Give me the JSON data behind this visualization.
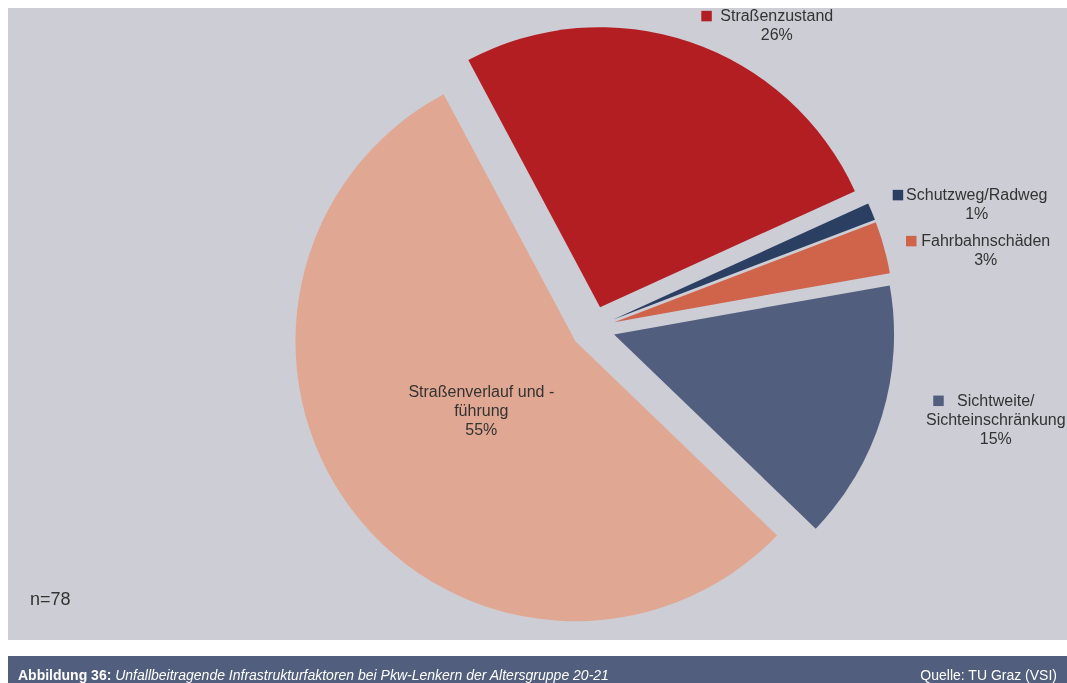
{
  "chart_data": {
    "type": "pie",
    "title": "Abbildung 36: Unfallbeitragende Infrastrukturfaktoren bei Pkw-Lenkern der Altersgruppe 20-21",
    "categories": [
      "Straßenzustand",
      "Schutzweg/Radweg",
      "Fahrbahnschäden",
      "Sichtweite/\nSichteinschränkung",
      "Straßenverlauf und -\nführung"
    ],
    "values": [
      26,
      1,
      3,
      15,
      55
    ],
    "colors": [
      "#b31e22",
      "#2b3f63",
      "#cf644b",
      "#525e7e",
      "#e0a893"
    ],
    "value_labels": [
      "26%",
      "1%",
      "3%",
      "15%",
      "55%"
    ],
    "annotations": [
      "n=78",
      "Quelle: TU Graz (VSI)"
    ],
    "legend": "right"
  }
}
